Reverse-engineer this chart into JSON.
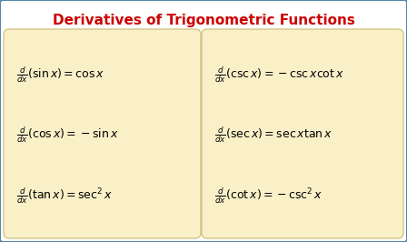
{
  "title": "Derivatives of Trigonometric Functions",
  "title_color": "#CC0000",
  "title_fontsize": 11.0,
  "bg_color": "#FFFFFF",
  "box_color": "#FAF0C8",
  "box_edge_color": "#C8B870",
  "border_color": "#5588AA",
  "left_formulas": [
    "\\frac{d}{dx}(\\sin x) = \\cos x",
    "\\frac{d}{dx}(\\cos x) = -\\sin x",
    "\\frac{d}{dx}(\\tan x) = \\sec^{2} x"
  ],
  "right_formulas": [
    "\\frac{d}{dx}(\\csc x) = -\\csc x\\cot x",
    "\\frac{d}{dx}(\\sec x) = \\sec x\\tan x",
    "\\frac{d}{dx}(\\cot x) = -\\csc^{2} x"
  ],
  "formula_fontsize": 9.0,
  "formula_color": "#000000",
  "fig_width": 4.48,
  "fig_height": 2.66,
  "dpi": 100
}
